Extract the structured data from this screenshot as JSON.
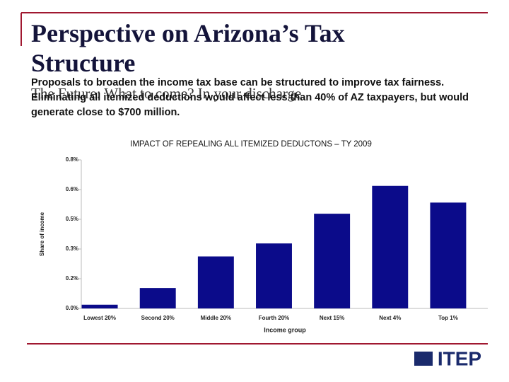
{
  "slide": {
    "title": "Perspective on Arizona’s Tax Structure",
    "subtitle": "The Future: What to come? In your discharge",
    "body": "Proposals to broaden the income tax base can be structured to improve tax fairness. Eliminating all itemized deductions would affect less than 40% of AZ taxpayers, but would generate close to $700 million.",
    "logo": "ITEP"
  },
  "chart_data": {
    "type": "bar",
    "title": "IMPACT OF REPEALING ALL ITEMIZED DEDUCTONS – TY 2009",
    "x_label": "Income group",
    "y_label": "Share of income",
    "categories": [
      "Lowest 20%",
      "Second 20%",
      "Middle 20%",
      "Fourth 20%",
      "Next 15%",
      "Next 4%",
      "Top 1%"
    ],
    "values": [
      0.02,
      0.11,
      0.28,
      0.35,
      0.51,
      0.66,
      0.57
    ],
    "color": "#0b0b8a",
    "ylim": [
      0,
      0.8
    ],
    "yticks": [
      {
        "value": 0,
        "label": "0.0%"
      },
      {
        "value": 0.16,
        "label": "0.2%"
      },
      {
        "value": 0.32,
        "label": "0.3%"
      },
      {
        "value": 0.48,
        "label": "0.5%"
      },
      {
        "value": 0.64,
        "label": "0.6%"
      },
      {
        "value": 0.8,
        "label": "0.8%"
      }
    ],
    "grid": false
  }
}
